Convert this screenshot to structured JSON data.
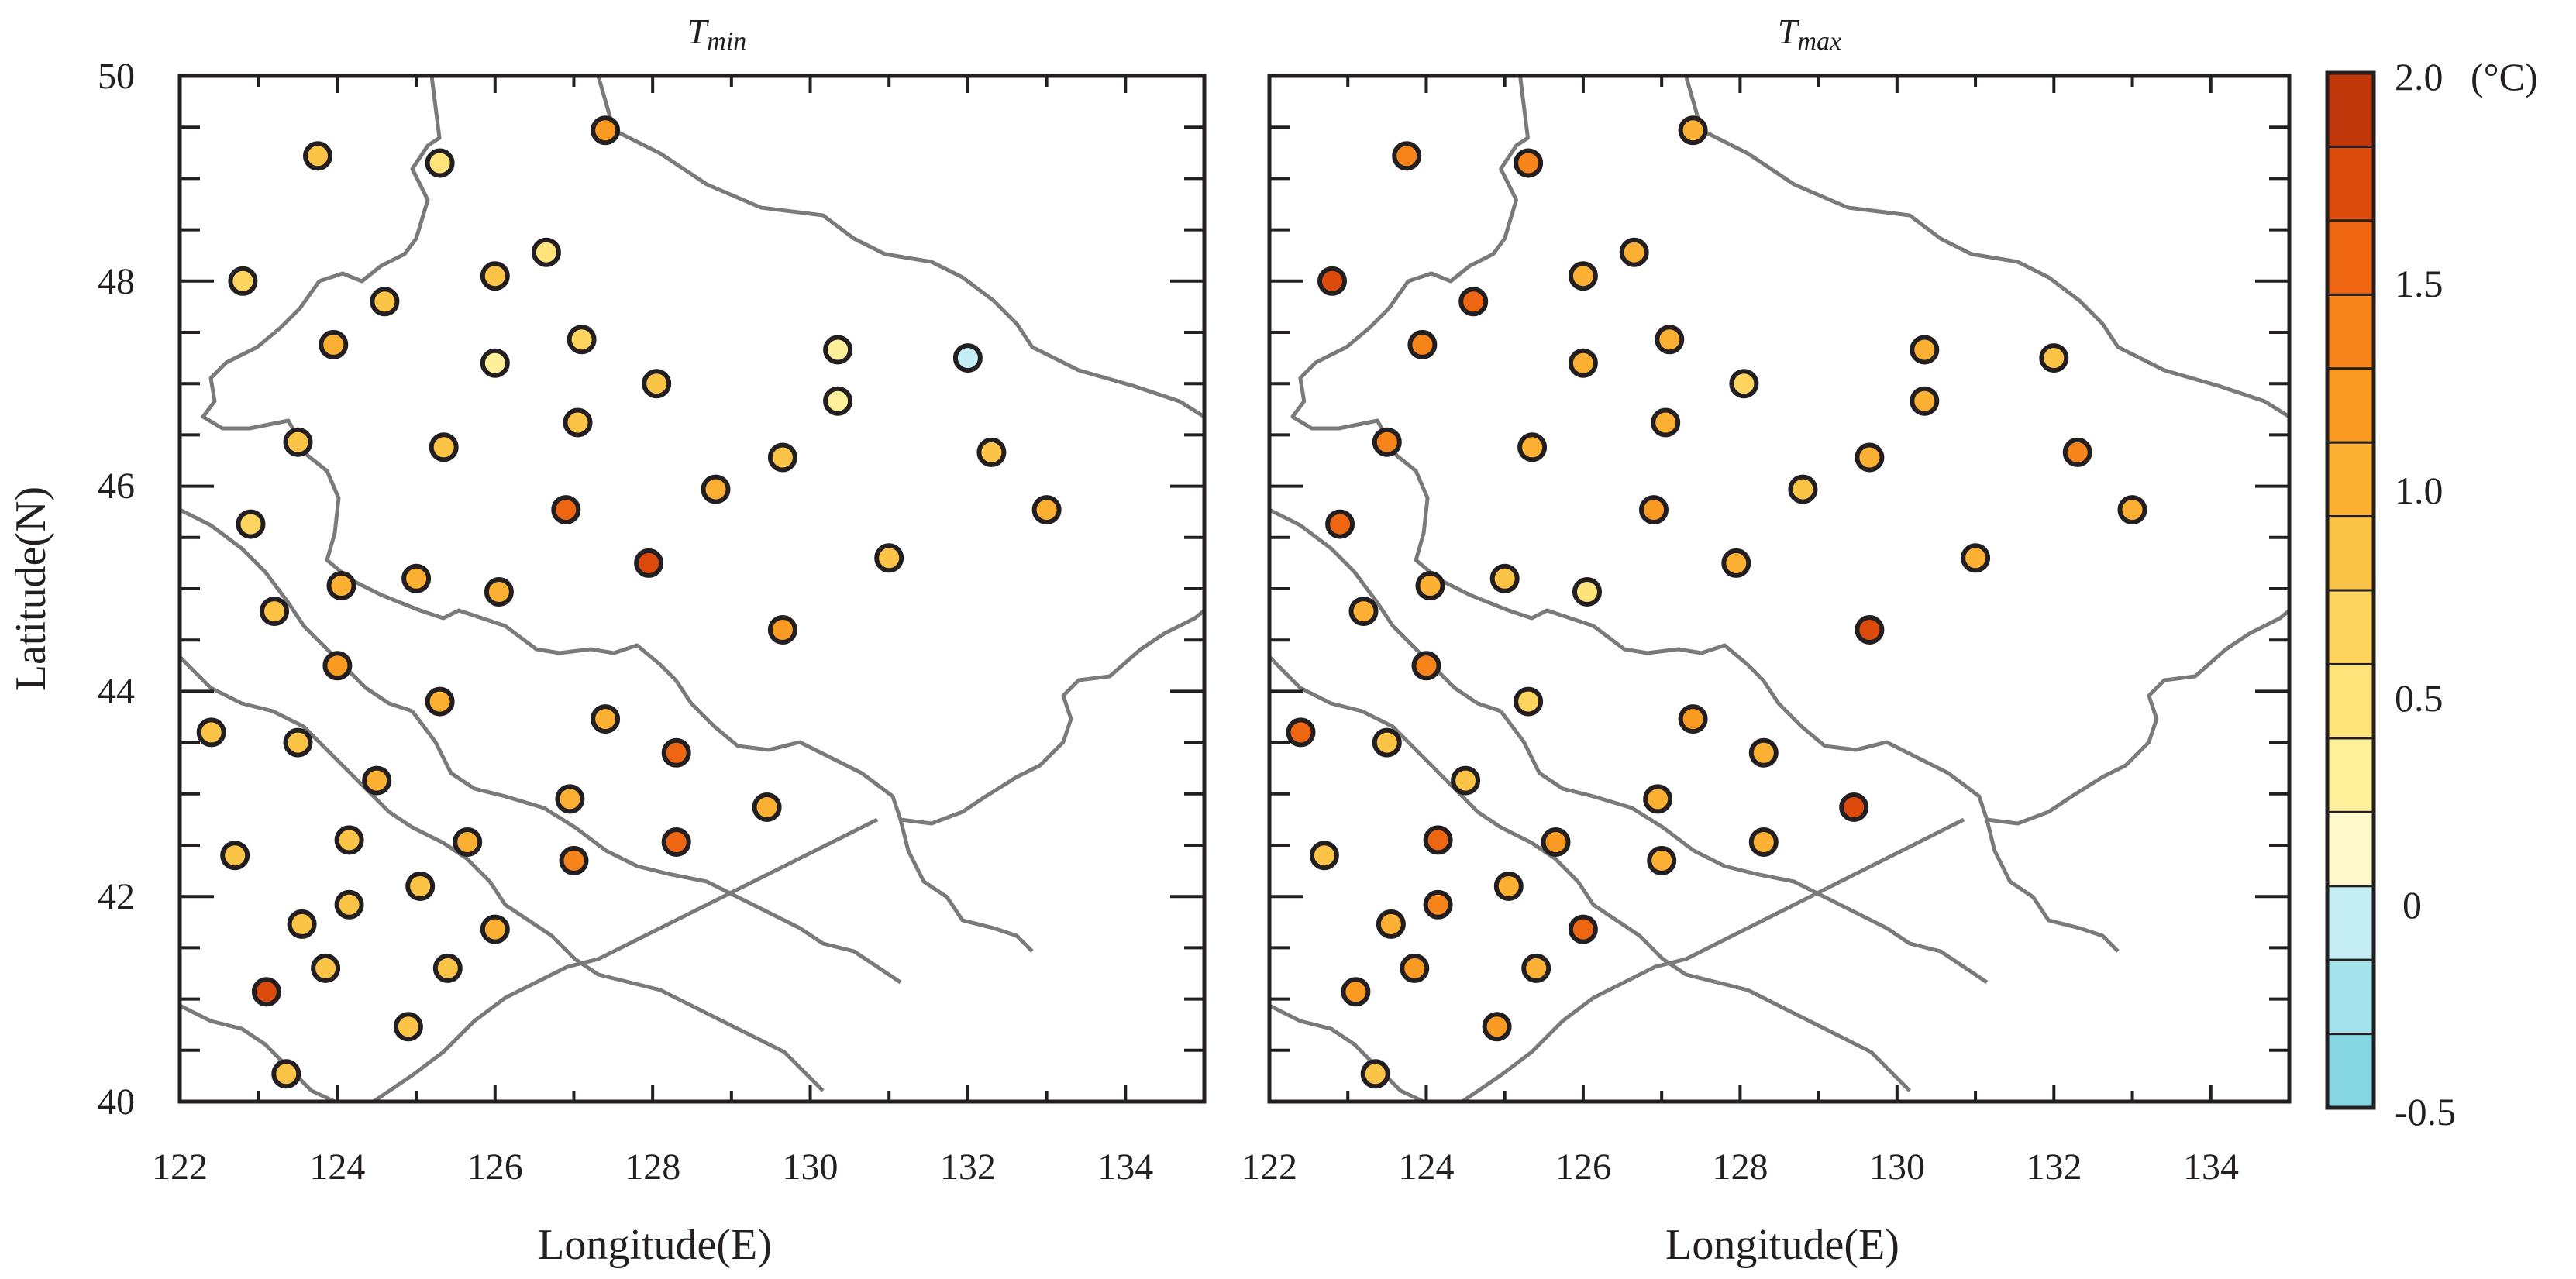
{
  "chart_data": [
    {
      "type": "scatter",
      "subtitle": {
        "main": "T",
        "sub": "min"
      },
      "xlabel": "Longitude(E)",
      "ylabel": "Latitude(N)",
      "xlim": [
        122,
        135
      ],
      "ylim": [
        40,
        50
      ],
      "x_ticks": [
        "122",
        "124",
        "126",
        "128",
        "130",
        "132",
        "134"
      ],
      "y_ticks": [
        "40",
        "42",
        "44",
        "46",
        "48",
        "50"
      ],
      "points": [
        {
          "x": 123.75,
          "y": 49.22,
          "v": 0.9
        },
        {
          "x": 125.3,
          "y": 49.15,
          "v": 0.4
        },
        {
          "x": 127.4,
          "y": 49.47,
          "v": 1.2
        },
        {
          "x": 122.8,
          "y": 48.0,
          "v": 0.7
        },
        {
          "x": 124.6,
          "y": 47.8,
          "v": 0.8
        },
        {
          "x": 126.0,
          "y": 48.05,
          "v": 0.8
        },
        {
          "x": 126.65,
          "y": 48.28,
          "v": 0.5
        },
        {
          "x": 123.95,
          "y": 47.38,
          "v": 1.1
        },
        {
          "x": 126.0,
          "y": 47.2,
          "v": 0.3
        },
        {
          "x": 127.1,
          "y": 47.43,
          "v": 0.7
        },
        {
          "x": 128.05,
          "y": 47.0,
          "v": 0.9
        },
        {
          "x": 130.35,
          "y": 47.33,
          "v": 0.3
        },
        {
          "x": 132.0,
          "y": 47.25,
          "v": -0.1
        },
        {
          "x": 123.5,
          "y": 46.43,
          "v": 0.8
        },
        {
          "x": 125.35,
          "y": 46.38,
          "v": 0.8
        },
        {
          "x": 127.05,
          "y": 46.62,
          "v": 0.8
        },
        {
          "x": 129.65,
          "y": 46.28,
          "v": 0.8
        },
        {
          "x": 130.35,
          "y": 46.83,
          "v": 0.3
        },
        {
          "x": 132.3,
          "y": 46.33,
          "v": 0.9
        },
        {
          "x": 122.9,
          "y": 45.63,
          "v": 0.7
        },
        {
          "x": 126.9,
          "y": 45.77,
          "v": 1.6
        },
        {
          "x": 128.8,
          "y": 45.97,
          "v": 1.0
        },
        {
          "x": 133.0,
          "y": 45.77,
          "v": 1.0
        },
        {
          "x": 123.2,
          "y": 44.78,
          "v": 0.9
        },
        {
          "x": 124.05,
          "y": 45.03,
          "v": 1.1
        },
        {
          "x": 125.0,
          "y": 45.1,
          "v": 1.0
        },
        {
          "x": 126.05,
          "y": 44.97,
          "v": 1.0
        },
        {
          "x": 127.95,
          "y": 45.25,
          "v": 1.8
        },
        {
          "x": 131.0,
          "y": 45.3,
          "v": 0.9
        },
        {
          "x": 124.0,
          "y": 44.25,
          "v": 1.2
        },
        {
          "x": 125.3,
          "y": 43.9,
          "v": 1.0
        },
        {
          "x": 127.4,
          "y": 43.73,
          "v": 1.1
        },
        {
          "x": 129.65,
          "y": 44.6,
          "v": 1.2
        },
        {
          "x": 122.4,
          "y": 43.6,
          "v": 0.8
        },
        {
          "x": 123.5,
          "y": 43.5,
          "v": 0.9
        },
        {
          "x": 124.5,
          "y": 43.13,
          "v": 1.1
        },
        {
          "x": 128.3,
          "y": 43.4,
          "v": 1.5
        },
        {
          "x": 126.95,
          "y": 42.95,
          "v": 1.1
        },
        {
          "x": 129.45,
          "y": 42.87,
          "v": 1.1
        },
        {
          "x": 122.7,
          "y": 42.4,
          "v": 0.9
        },
        {
          "x": 124.15,
          "y": 42.55,
          "v": 0.9
        },
        {
          "x": 125.65,
          "y": 42.53,
          "v": 1.0
        },
        {
          "x": 127.0,
          "y": 42.35,
          "v": 1.4
        },
        {
          "x": 128.3,
          "y": 42.53,
          "v": 1.5
        },
        {
          "x": 123.55,
          "y": 41.73,
          "v": 0.8
        },
        {
          "x": 124.15,
          "y": 41.92,
          "v": 0.9
        },
        {
          "x": 125.05,
          "y": 42.1,
          "v": 0.8
        },
        {
          "x": 126.0,
          "y": 41.68,
          "v": 1.1
        },
        {
          "x": 123.1,
          "y": 41.07,
          "v": 1.8
        },
        {
          "x": 123.85,
          "y": 41.3,
          "v": 0.9
        },
        {
          "x": 125.4,
          "y": 41.3,
          "v": 0.9
        },
        {
          "x": 124.9,
          "y": 40.73,
          "v": 0.8
        },
        {
          "x": 123.35,
          "y": 40.27,
          "v": 0.8
        }
      ]
    },
    {
      "type": "scatter",
      "subtitle": {
        "main": "T",
        "sub": "max"
      },
      "xlabel": "Longitude(E)",
      "ylabel": "",
      "xlim": [
        122,
        135
      ],
      "ylim": [
        40,
        50
      ],
      "x_ticks": [
        "122",
        "124",
        "126",
        "128",
        "130",
        "132",
        "134"
      ],
      "y_ticks": [],
      "points": [
        {
          "x": 123.75,
          "y": 49.22,
          "v": 1.4
        },
        {
          "x": 125.3,
          "y": 49.15,
          "v": 1.4
        },
        {
          "x": 127.4,
          "y": 49.47,
          "v": 1.0
        },
        {
          "x": 122.8,
          "y": 48.0,
          "v": 1.7
        },
        {
          "x": 124.6,
          "y": 47.8,
          "v": 1.5
        },
        {
          "x": 126.0,
          "y": 48.05,
          "v": 1.1
        },
        {
          "x": 126.65,
          "y": 48.28,
          "v": 1.1
        },
        {
          "x": 123.95,
          "y": 47.38,
          "v": 1.4
        },
        {
          "x": 126.0,
          "y": 47.2,
          "v": 1.1
        },
        {
          "x": 127.1,
          "y": 47.43,
          "v": 1.1
        },
        {
          "x": 128.05,
          "y": 47.0,
          "v": 0.6
        },
        {
          "x": 130.35,
          "y": 47.33,
          "v": 1.0
        },
        {
          "x": 132.0,
          "y": 47.25,
          "v": 0.9
        },
        {
          "x": 123.5,
          "y": 46.43,
          "v": 1.4
        },
        {
          "x": 125.35,
          "y": 46.38,
          "v": 1.1
        },
        {
          "x": 127.05,
          "y": 46.62,
          "v": 1.0
        },
        {
          "x": 129.65,
          "y": 46.28,
          "v": 1.0
        },
        {
          "x": 130.35,
          "y": 46.83,
          "v": 1.1
        },
        {
          "x": 132.3,
          "y": 46.33,
          "v": 1.3
        },
        {
          "x": 122.9,
          "y": 45.63,
          "v": 1.6
        },
        {
          "x": 126.9,
          "y": 45.77,
          "v": 1.2
        },
        {
          "x": 128.8,
          "y": 45.97,
          "v": 0.8
        },
        {
          "x": 133.0,
          "y": 45.77,
          "v": 1.0
        },
        {
          "x": 123.2,
          "y": 44.78,
          "v": 1.1
        },
        {
          "x": 124.05,
          "y": 45.03,
          "v": 1.1
        },
        {
          "x": 125.0,
          "y": 45.1,
          "v": 0.9
        },
        {
          "x": 126.05,
          "y": 44.97,
          "v": 0.4
        },
        {
          "x": 127.95,
          "y": 45.25,
          "v": 1.0
        },
        {
          "x": 131.0,
          "y": 45.3,
          "v": 1.1
        },
        {
          "x": 124.0,
          "y": 44.25,
          "v": 1.3
        },
        {
          "x": 125.3,
          "y": 43.9,
          "v": 0.7
        },
        {
          "x": 127.4,
          "y": 43.73,
          "v": 1.2
        },
        {
          "x": 129.65,
          "y": 44.6,
          "v": 1.8
        },
        {
          "x": 122.4,
          "y": 43.6,
          "v": 1.6
        },
        {
          "x": 123.5,
          "y": 43.5,
          "v": 0.8
        },
        {
          "x": 124.5,
          "y": 43.13,
          "v": 0.8
        },
        {
          "x": 128.3,
          "y": 43.4,
          "v": 1.1
        },
        {
          "x": 126.95,
          "y": 42.95,
          "v": 1.1
        },
        {
          "x": 129.45,
          "y": 42.87,
          "v": 1.7
        },
        {
          "x": 122.7,
          "y": 42.4,
          "v": 0.9
        },
        {
          "x": 124.15,
          "y": 42.55,
          "v": 1.5
        },
        {
          "x": 125.65,
          "y": 42.53,
          "v": 1.2
        },
        {
          "x": 127.0,
          "y": 42.35,
          "v": 1.1
        },
        {
          "x": 128.3,
          "y": 42.53,
          "v": 1.0
        },
        {
          "x": 123.55,
          "y": 41.73,
          "v": 1.1
        },
        {
          "x": 124.15,
          "y": 41.92,
          "v": 1.3
        },
        {
          "x": 125.05,
          "y": 42.1,
          "v": 1.0
        },
        {
          "x": 126.0,
          "y": 41.68,
          "v": 1.6
        },
        {
          "x": 123.1,
          "y": 41.07,
          "v": 1.2
        },
        {
          "x": 123.85,
          "y": 41.3,
          "v": 1.2
        },
        {
          "x": 125.4,
          "y": 41.3,
          "v": 1.0
        },
        {
          "x": 124.9,
          "y": 40.73,
          "v": 1.2
        },
        {
          "x": 123.35,
          "y": 40.27,
          "v": 0.8
        }
      ]
    }
  ],
  "colorbar": {
    "min": -0.5,
    "max": 2.0,
    "step": 0.25,
    "unit": "(°C)",
    "labels": [
      {
        "v": 2.0,
        "text": "2.0"
      },
      {
        "v": 1.5,
        "text": "1.5"
      },
      {
        "v": 1.0,
        "text": "1.0"
      },
      {
        "v": 0.5,
        "text": "0.5"
      },
      {
        "v": 0.0,
        "text": "0"
      },
      {
        "v": -0.5,
        "text": "-0.5"
      }
    ],
    "colors": [
      "#85d6e2",
      "#a3e2ea",
      "#c5edf4",
      "#fff9cc",
      "#feef9a",
      "#fee27a",
      "#fdd55e",
      "#fcc447",
      "#fbb034",
      "#f99b22",
      "#f6841a",
      "#ef6612",
      "#dc4a0c",
      "#c0370b"
    ]
  },
  "colors": {
    "boundary": "#7a7a7a",
    "marker_edge": "#231f20",
    "axis": "#231f20"
  }
}
